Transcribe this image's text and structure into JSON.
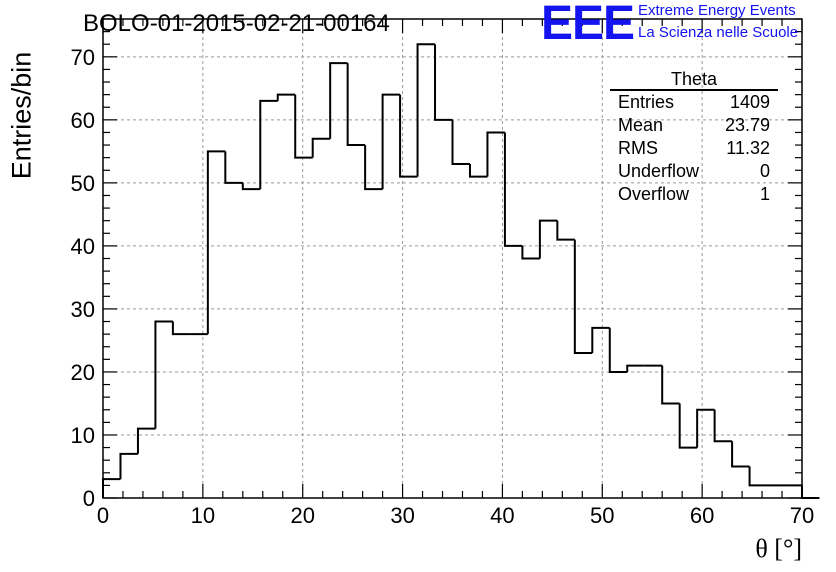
{
  "title": "BOLO-01-2015-02-21-00164",
  "logo": {
    "mark": "EEE",
    "line1": "Extreme Energy Events",
    "line2": "La Scienza nelle Scuole",
    "color": "#1414f0"
  },
  "stats_box": {
    "title": "Theta",
    "rows": [
      {
        "label": "Entries",
        "value": "1409"
      },
      {
        "label": "Mean",
        "value": "23.79"
      },
      {
        "label": "RMS",
        "value": "11.32"
      },
      {
        "label": "Underflow",
        "value": "0"
      },
      {
        "label": "Overflow",
        "value": "1"
      }
    ]
  },
  "chart_data": {
    "type": "bar",
    "subtype": "step-histogram",
    "xlabel": "θ [°]",
    "ylabel": "Entries/bin",
    "xlim": [
      0,
      70
    ],
    "ylim": [
      0,
      76
    ],
    "bin_width": 1.75,
    "bin_edges_start": 0,
    "x_ticks": [
      0,
      10,
      20,
      30,
      40,
      50,
      60,
      70
    ],
    "y_ticks": [
      0,
      10,
      20,
      30,
      40,
      50,
      60,
      70
    ],
    "grid": true,
    "values": [
      3,
      7,
      11,
      28,
      26,
      26,
      55,
      50,
      49,
      63,
      64,
      54,
      57,
      69,
      56,
      49,
      64,
      51,
      72,
      60,
      53,
      51,
      58,
      40,
      38,
      44,
      41,
      23,
      27,
      20,
      21,
      21,
      15,
      8,
      14,
      9,
      5,
      2,
      2,
      2,
      0
    ]
  }
}
